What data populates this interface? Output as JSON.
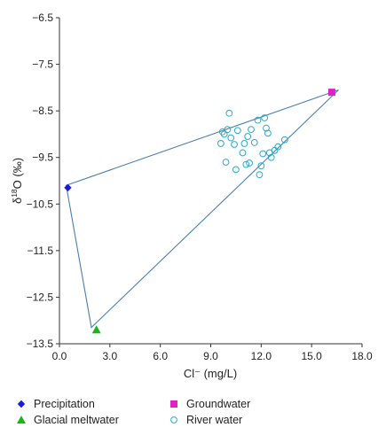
{
  "chart_data": {
    "type": "scatter",
    "xlabel": "Cl⁻ (mg/L)",
    "ylabel_base": "δ",
    "ylabel_sup": "18",
    "ylabel_rest": "O (‰)",
    "xlim": [
      0,
      18
    ],
    "ylim": [
      -13.5,
      -6.5
    ],
    "xticks": [
      0.0,
      3.0,
      6.0,
      9.0,
      12.0,
      15.0,
      18.0
    ],
    "xtick_labels": [
      "0.0",
      "3.0",
      "6.0",
      "9.0",
      "12.0",
      "15.0",
      "18.0"
    ],
    "yticks": [
      -6.5,
      -7.5,
      -8.5,
      -9.5,
      -10.5,
      -11.5,
      -12.5,
      -13.5
    ],
    "ytick_labels": [
      "−6.5",
      "−7.5",
      "−8.5",
      "−9.5",
      "−10.5",
      "−11.5",
      "−12.5",
      "−13.5"
    ],
    "mixing_triangle": [
      [
        0.4,
        -10.1
      ],
      [
        1.9,
        -13.15
      ],
      [
        16.6,
        -8.05
      ]
    ],
    "series": [
      {
        "name": "Precipitation",
        "marker": "diamond",
        "color": "#1a1adb",
        "points": [
          [
            0.5,
            -10.15
          ]
        ]
      },
      {
        "name": "Groundwater",
        "marker": "square",
        "color": "#e21fc5",
        "points": [
          [
            16.2,
            -8.1
          ]
        ]
      },
      {
        "name": "Glacial meltwater",
        "marker": "triangle",
        "color": "#19b519",
        "points": [
          [
            2.2,
            -13.2
          ]
        ]
      },
      {
        "name": "River water",
        "marker": "circle",
        "color": "#2aa9c9",
        "points": [
          [
            10.1,
            -8.55
          ],
          [
            11.8,
            -8.7
          ],
          [
            12.2,
            -8.65
          ],
          [
            9.7,
            -8.95
          ],
          [
            10.0,
            -8.9
          ],
          [
            10.6,
            -8.92
          ],
          [
            11.4,
            -8.9
          ],
          [
            12.3,
            -8.87
          ],
          [
            9.8,
            -9.0
          ],
          [
            10.2,
            -9.08
          ],
          [
            11.2,
            -9.05
          ],
          [
            12.4,
            -8.98
          ],
          [
            9.6,
            -9.2
          ],
          [
            10.4,
            -9.22
          ],
          [
            11.0,
            -9.2
          ],
          [
            11.6,
            -9.18
          ],
          [
            13.4,
            -9.12
          ],
          [
            10.9,
            -9.4
          ],
          [
            12.1,
            -9.42
          ],
          [
            12.5,
            -9.4
          ],
          [
            12.8,
            -9.35
          ],
          [
            13.0,
            -9.27
          ],
          [
            9.9,
            -9.6
          ],
          [
            11.1,
            -9.65
          ],
          [
            11.3,
            -9.62
          ],
          [
            12.0,
            -9.68
          ],
          [
            12.6,
            -9.5
          ],
          [
            10.5,
            -9.76
          ],
          [
            11.9,
            -9.87
          ]
        ]
      }
    ],
    "legend": [
      {
        "label": "Precipitation",
        "marker": "diamond",
        "color": "#1a1adb"
      },
      {
        "label": "Glacial meltwater",
        "marker": "triangle",
        "color": "#19b519"
      },
      {
        "label": "Groundwater",
        "marker": "square",
        "color": "#e21fc5"
      },
      {
        "label": "River water",
        "marker": "circle",
        "color": "#2aa9c9"
      }
    ],
    "legend_position": "bottom",
    "line_color": "#4a7fb0",
    "grid": false
  }
}
